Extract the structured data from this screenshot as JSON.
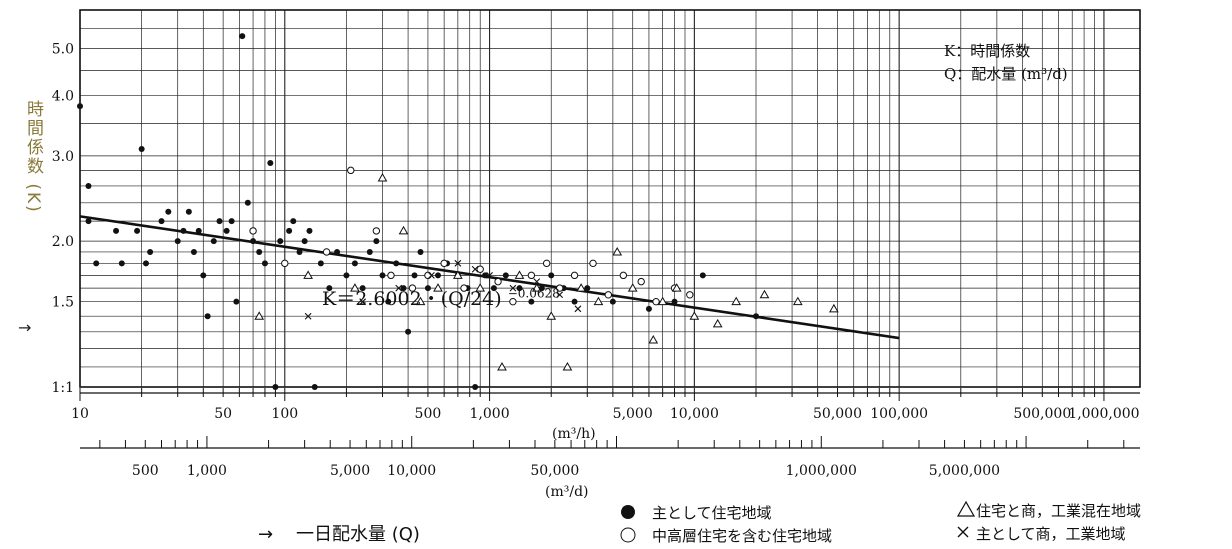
{
  "chart_data": {
    "type": "scatter",
    "y_scale": "log",
    "x_scale": "log",
    "ylim": [
      1.0,
      6.0
    ],
    "xlim": [
      10,
      1500000
    ],
    "y_ticks": [
      {
        "label": "5.0",
        "value": 5.0
      },
      {
        "label": "4.0",
        "value": 4.0
      },
      {
        "label": "3.0",
        "value": 3.0
      },
      {
        "label": "2.0",
        "value": 2.0
      },
      {
        "label": "1.5",
        "value": 1.5
      },
      {
        "label": "1:1",
        "value": 1.0
      }
    ],
    "ylabel": "時間係数 (K)",
    "ylabel_arrow": "→",
    "x_ticks_hourly": [
      {
        "label": "10",
        "value": 10
      },
      {
        "label": "50",
        "value": 50
      },
      {
        "label": "100",
        "value": 100
      },
      {
        "label": "500",
        "value": 500
      },
      {
        "label": "1,000",
        "value": 1000
      },
      {
        "label": "5,000",
        "value": 5000
      },
      {
        "label": "10,000",
        "value": 10000
      },
      {
        "label": "50,000",
        "value": 50000
      },
      {
        "label": "100,000",
        "value": 100000
      },
      {
        "label": "500,000",
        "value": 500000
      },
      {
        "label": "1,000,000",
        "value": 1000000
      }
    ],
    "x_unit_hourly": "(m³/h)",
    "x_ticks_daily": [
      {
        "label": "500",
        "value": 500
      },
      {
        "label": "1,000",
        "value": 1000
      },
      {
        "label": "5,000",
        "value": 5000
      },
      {
        "label": "10,000",
        "value": 10000
      },
      {
        "label": "50,000",
        "value": 50000
      },
      {
        "label": "1,000,000",
        "value": 1000000
      },
      {
        "label": "5,000,000",
        "value": 5000000
      }
    ],
    "x_unit_daily": "(m³/d)",
    "xlabel": "一日配水量 (Q)",
    "xlabel_arrow": "→",
    "key_lines": [
      "K：時間係数",
      "Q：配水量 (m³/d)"
    ],
    "formula": {
      "text": "K＝2.6002・(Q/24)",
      "exponent": "−0.0628"
    },
    "regression": {
      "coef": 2.6002,
      "exponent": -0.0628,
      "x_from": 10,
      "x_to": 100000
    },
    "legend": [
      {
        "symbol": "●",
        "label": "主として住宅地域"
      },
      {
        "symbol": "○",
        "label": "中高層住宅を含む住宅地域"
      },
      {
        "symbol": "△",
        "label": "住宅と商，工業混在地域"
      },
      {
        "symbol": "×",
        "label": "主として商，工業地域"
      }
    ],
    "series": [
      {
        "name": "主として住宅地域",
        "marker": "filled-circle",
        "points": [
          [
            10,
            3.8
          ],
          [
            11,
            2.6
          ],
          [
            11,
            2.2
          ],
          [
            12,
            1.8
          ],
          [
            15,
            2.1
          ],
          [
            16,
            1.8
          ],
          [
            19,
            2.1
          ],
          [
            20,
            3.1
          ],
          [
            21,
            1.8
          ],
          [
            22,
            1.9
          ],
          [
            25,
            2.2
          ],
          [
            27,
            2.3
          ],
          [
            30,
            2.0
          ],
          [
            32,
            2.1
          ],
          [
            34,
            2.3
          ],
          [
            36,
            1.9
          ],
          [
            38,
            2.1
          ],
          [
            40,
            1.7
          ],
          [
            42,
            1.4
          ],
          [
            45,
            2.0
          ],
          [
            48,
            2.2
          ],
          [
            52,
            2.1
          ],
          [
            55,
            2.2
          ],
          [
            58,
            1.5
          ],
          [
            62,
            5.3
          ],
          [
            66,
            2.4
          ],
          [
            70,
            2.0
          ],
          [
            75,
            1.9
          ],
          [
            80,
            1.8
          ],
          [
            85,
            2.9
          ],
          [
            90,
            1.0
          ],
          [
            95,
            2.0
          ],
          [
            105,
            2.1
          ],
          [
            110,
            2.2
          ],
          [
            118,
            1.9
          ],
          [
            125,
            2.0
          ],
          [
            132,
            2.1
          ],
          [
            140,
            1.0
          ],
          [
            150,
            1.8
          ],
          [
            165,
            1.6
          ],
          [
            180,
            1.9
          ],
          [
            200,
            1.7
          ],
          [
            220,
            1.8
          ],
          [
            240,
            1.6
          ],
          [
            260,
            1.9
          ],
          [
            280,
            2.0
          ],
          [
            300,
            1.7
          ],
          [
            320,
            1.5
          ],
          [
            350,
            1.8
          ],
          [
            380,
            1.6
          ],
          [
            400,
            1.3
          ],
          [
            430,
            1.7
          ],
          [
            460,
            1.9
          ],
          [
            500,
            1.6
          ],
          [
            560,
            1.7
          ],
          [
            620,
            1.8
          ],
          [
            700,
            1.7
          ],
          [
            780,
            1.6
          ],
          [
            850,
            1.0
          ],
          [
            950,
            1.7
          ],
          [
            1050,
            1.6
          ],
          [
            1200,
            1.7
          ],
          [
            1400,
            1.6
          ],
          [
            1600,
            1.5
          ],
          [
            1800,
            1.6
          ],
          [
            2000,
            1.7
          ],
          [
            2300,
            1.6
          ],
          [
            2600,
            1.5
          ],
          [
            3000,
            1.6
          ],
          [
            4000,
            1.5
          ],
          [
            6000,
            1.45
          ],
          [
            8000,
            1.5
          ],
          [
            11000,
            1.7
          ],
          [
            20000,
            1.4
          ]
        ]
      },
      {
        "name": "中高層住宅を含む住宅地域",
        "marker": "open-circle",
        "points": [
          [
            70,
            2.1
          ],
          [
            100,
            1.8
          ],
          [
            160,
            1.9
          ],
          [
            210,
            2.8
          ],
          [
            280,
            2.1
          ],
          [
            330,
            1.7
          ],
          [
            420,
            1.6
          ],
          [
            500,
            1.7
          ],
          [
            600,
            1.8
          ],
          [
            750,
            1.6
          ],
          [
            900,
            1.75
          ],
          [
            1100,
            1.65
          ],
          [
            1300,
            1.5
          ],
          [
            1600,
            1.7
          ],
          [
            1900,
            1.8
          ],
          [
            2200,
            1.6
          ],
          [
            2600,
            1.7
          ],
          [
            3200,
            1.8
          ],
          [
            3800,
            1.55
          ],
          [
            4500,
            1.7
          ],
          [
            5500,
            1.65
          ],
          [
            6500,
            1.5
          ],
          [
            8000,
            1.6
          ],
          [
            9500,
            1.55
          ]
        ]
      },
      {
        "name": "住宅と商，工業混在地域",
        "marker": "triangle",
        "points": [
          [
            75,
            1.4
          ],
          [
            130,
            1.7
          ],
          [
            220,
            1.6
          ],
          [
            300,
            2.7
          ],
          [
            380,
            2.1
          ],
          [
            460,
            1.5
          ],
          [
            560,
            1.6
          ],
          [
            700,
            1.7
          ],
          [
            900,
            1.6
          ],
          [
            1150,
            1.1
          ],
          [
            1400,
            1.7
          ],
          [
            1700,
            1.6
          ],
          [
            2000,
            1.4
          ],
          [
            2400,
            1.1
          ],
          [
            2800,
            1.6
          ],
          [
            3400,
            1.5
          ],
          [
            4200,
            1.9
          ],
          [
            5000,
            1.6
          ],
          [
            6300,
            1.25
          ],
          [
            7000,
            1.5
          ],
          [
            8200,
            1.6
          ],
          [
            10000,
            1.4
          ],
          [
            13000,
            1.35
          ],
          [
            16000,
            1.5
          ],
          [
            22000,
            1.55
          ],
          [
            32000,
            1.5
          ],
          [
            48000,
            1.45
          ]
        ]
      },
      {
        "name": "主として商，工業地域",
        "marker": "cross",
        "points": [
          [
            130,
            1.4
          ],
          [
            240,
            1.5
          ],
          [
            360,
            1.6
          ],
          [
            520,
            1.7
          ],
          [
            700,
            1.8
          ],
          [
            850,
            1.75
          ],
          [
            1000,
            1.7
          ],
          [
            1300,
            1.6
          ],
          [
            1700,
            1.65
          ],
          [
            2200,
            1.55
          ],
          [
            2700,
            1.45
          ]
        ]
      }
    ]
  }
}
